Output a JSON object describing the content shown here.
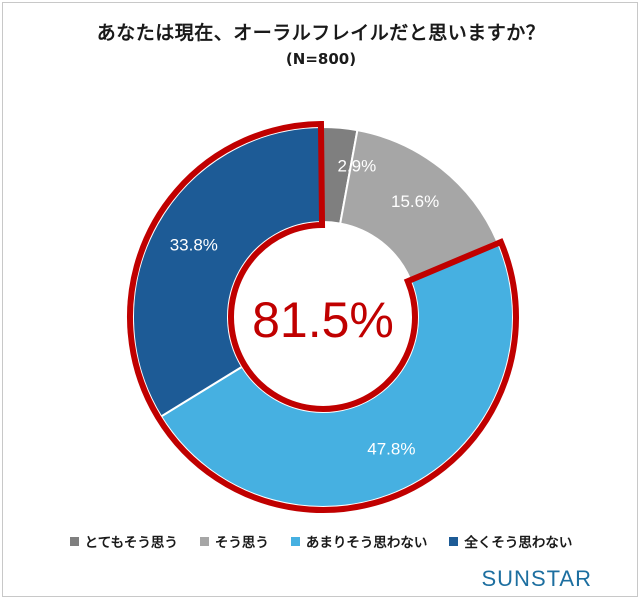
{
  "chart_data": {
    "type": "pie",
    "title": "あなたは現在、オーラルフレイルだと思いますか？",
    "subtitle": "(N=800)",
    "categories": [
      "とてもそう思う",
      "そう思う",
      "あまりそう思わない",
      "全くそう思わない"
    ],
    "values": [
      2.9,
      15.6,
      47.8,
      33.8
    ],
    "value_labels": [
      "2.9%",
      "15.6%",
      "47.8%",
      "33.8%"
    ],
    "colors": [
      "#7f7f7f",
      "#a6a6a6",
      "#46b0e1",
      "#1d5b96"
    ],
    "highlight": {
      "label": "81.5%",
      "categories": [
        "あまりそう思わない",
        "全くそう思わない"
      ],
      "color": "#c00000"
    },
    "legend_position": "bottom"
  },
  "brand": "SUNSTAR"
}
